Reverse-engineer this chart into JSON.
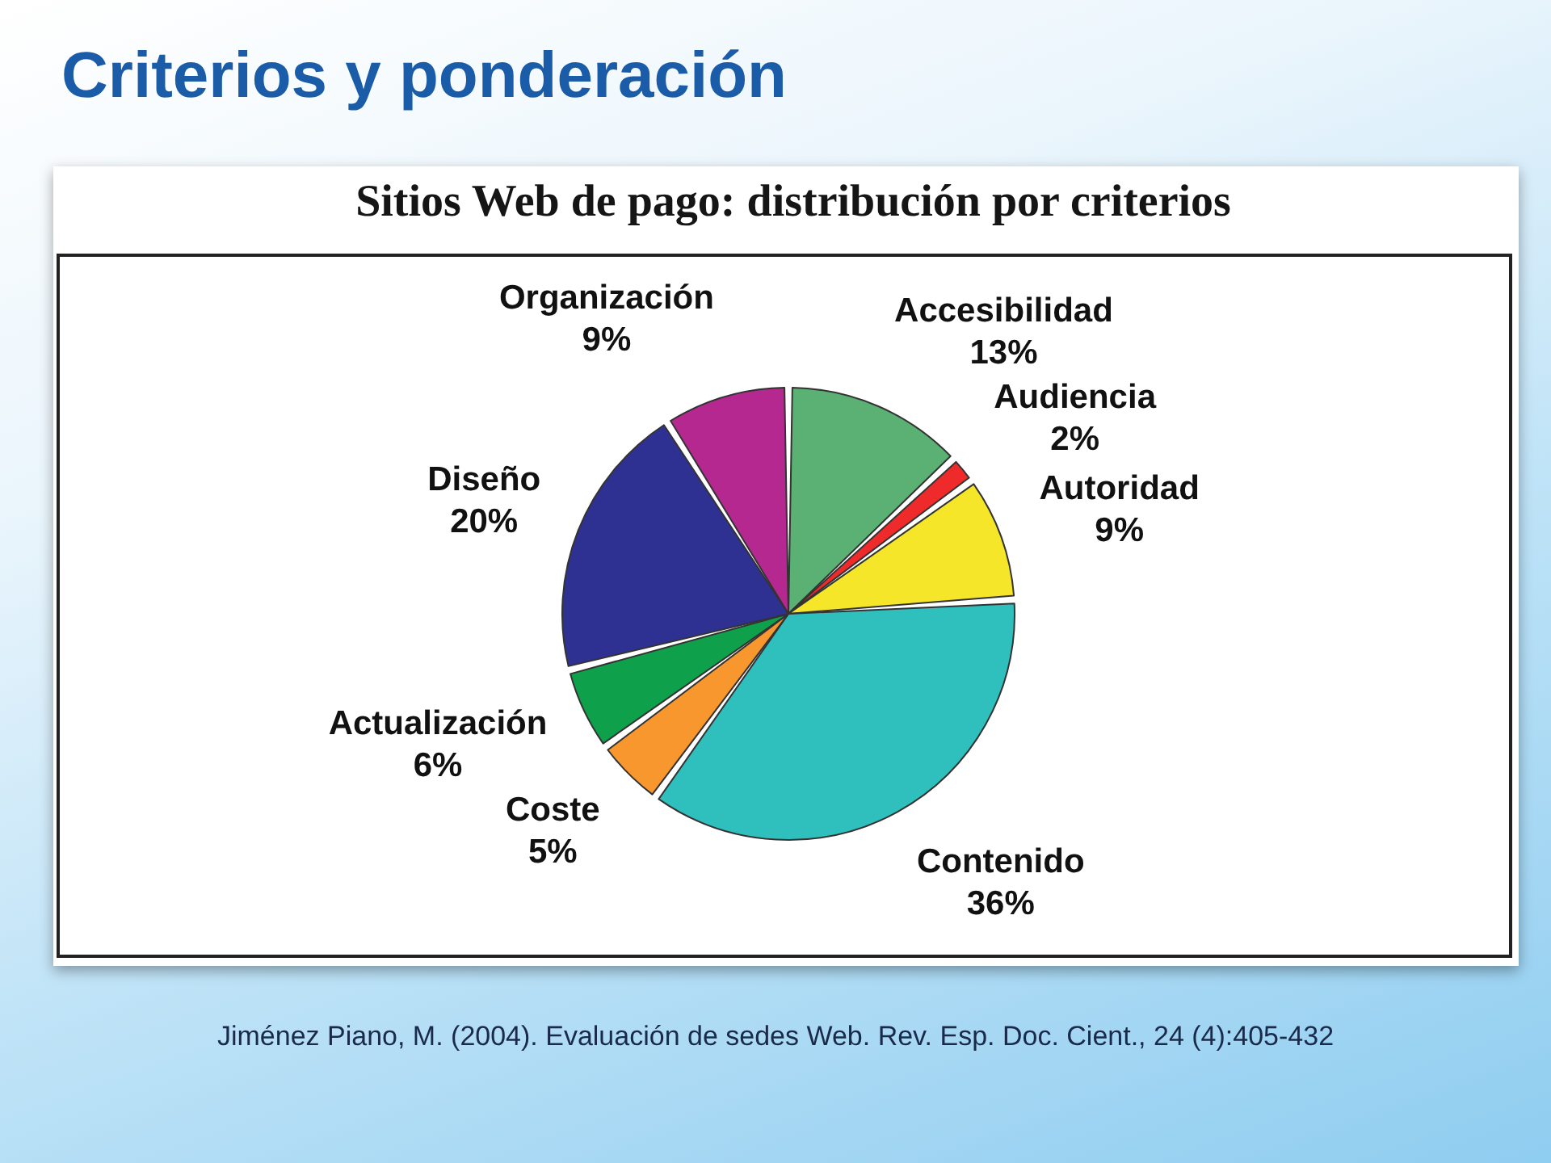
{
  "chart_data": {
    "type": "pie",
    "title": "Criterios y ponderación",
    "subtitle": "Sitios Web de pago: distribución por criterios",
    "categories": [
      "Accesibilidad",
      "Audiencia",
      "Autoridad",
      "Contenido",
      "Coste",
      "Actualización",
      "Diseño",
      "Organización"
    ],
    "values": [
      13,
      2,
      9,
      36,
      5,
      6,
      20,
      9
    ],
    "value_labels": [
      "13%",
      "2%",
      "9%",
      "36%",
      "5%",
      "6%",
      "20%",
      "9%"
    ],
    "colors": [
      "#5bb173",
      "#ee2a2a",
      "#f5e62a",
      "#2fbfbd",
      "#f7972e",
      "#0ea04b",
      "#2e3192",
      "#b4288f"
    ],
    "annotations": [
      "Jiménez Piano, M. (2004). Evaluación de sedes Web. Rev. Esp. Doc. Cient., 24 (4):405-432"
    ]
  }
}
